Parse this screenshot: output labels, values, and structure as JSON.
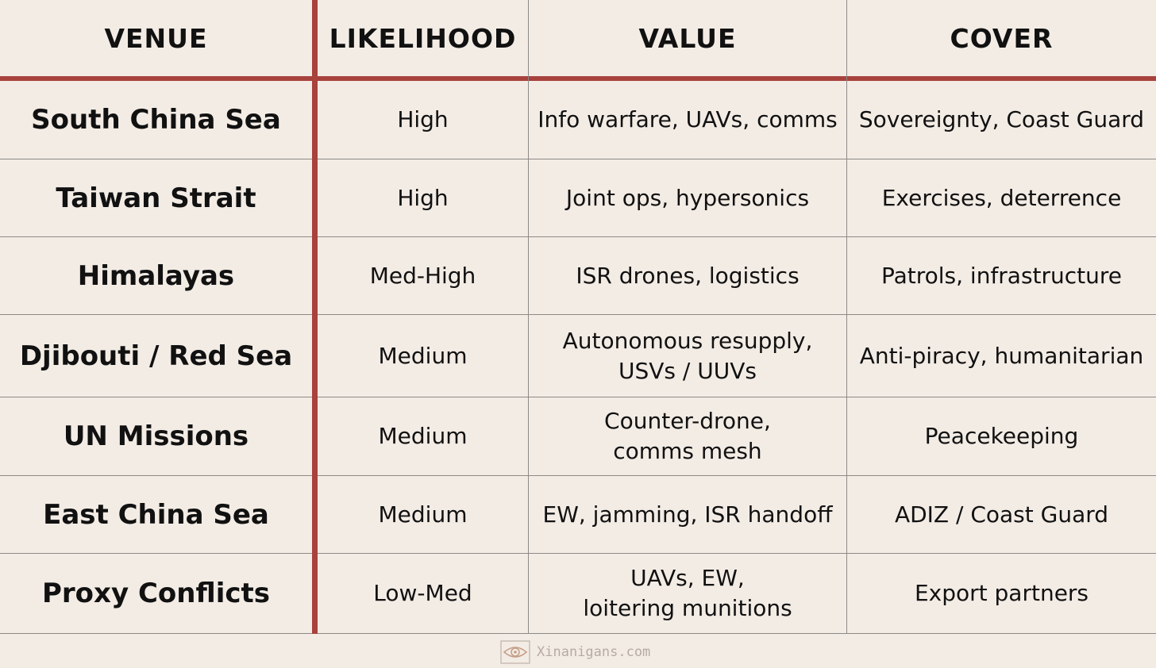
{
  "header": {
    "venue": "VENUE",
    "likelihood": "LIKELIHOOD",
    "value": "VALUE",
    "cover": "COVER"
  },
  "rows": [
    {
      "venue": "South China Sea",
      "likelihood": "High",
      "value": "Info warfare, UAVs, comms",
      "cover": "Sovereignty, Coast Guard"
    },
    {
      "venue": "Taiwan Strait",
      "likelihood": "High",
      "value": "Joint ops, hypersonics",
      "cover": "Exercises, deterrence"
    },
    {
      "venue": "Himalayas",
      "likelihood": "Med-High",
      "value": "ISR drones, logistics",
      "cover": "Patrols, infrastructure"
    },
    {
      "venue": "Djibouti / Red Sea",
      "likelihood": "Medium",
      "value": "Autonomous resupply,\nUSVs / UUVs",
      "cover": "Anti-piracy, humanitarian"
    },
    {
      "venue": "UN Missions",
      "likelihood": "Medium",
      "value": "Counter-drone,\ncomms mesh",
      "cover": "Peacekeeping"
    },
    {
      "venue": "East China Sea",
      "likelihood": "Medium",
      "value": "EW, jamming, ISR handoff",
      "cover": "ADIZ / Coast Guard"
    },
    {
      "venue": "Proxy Conflicts",
      "likelihood": "Low-Med",
      "value": "UAVs, EW,\nloitering munitions",
      "cover": "Export partners"
    }
  ],
  "watermark": {
    "text": "Xinanigans.com",
    "icon": "eye-logo-icon"
  },
  "colors": {
    "background": "#f3ece5",
    "accent_red": "#a8423d",
    "grid": "#8d8986",
    "text": "#111111",
    "watermark": "#b6aba2"
  }
}
